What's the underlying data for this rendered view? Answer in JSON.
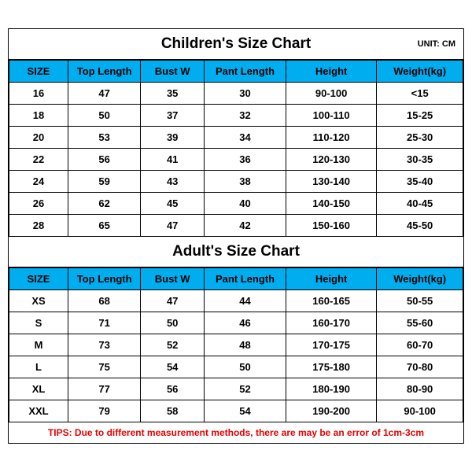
{
  "children": {
    "title": "Children's Size Chart",
    "unit": "UNIT: CM",
    "columns": [
      "SIZE",
      "Top Length",
      "Bust W",
      "Pant Length",
      "Height",
      "Weight(kg)"
    ],
    "rows": [
      [
        "16",
        "47",
        "35",
        "30",
        "90-100",
        "<15"
      ],
      [
        "18",
        "50",
        "37",
        "32",
        "100-110",
        "15-25"
      ],
      [
        "20",
        "53",
        "39",
        "34",
        "110-120",
        "25-30"
      ],
      [
        "22",
        "56",
        "41",
        "36",
        "120-130",
        "30-35"
      ],
      [
        "24",
        "59",
        "43",
        "38",
        "130-140",
        "35-40"
      ],
      [
        "26",
        "62",
        "45",
        "40",
        "140-150",
        "40-45"
      ],
      [
        "28",
        "65",
        "47",
        "42",
        "150-160",
        "45-50"
      ]
    ]
  },
  "adult": {
    "title": "Adult's Size Chart",
    "columns": [
      "SIZE",
      "Top Length",
      "Bust W",
      "Pant Length",
      "Height",
      "Weight(kg)"
    ],
    "rows": [
      [
        "XS",
        "68",
        "47",
        "44",
        "160-165",
        "50-55"
      ],
      [
        "S",
        "71",
        "50",
        "46",
        "160-170",
        "55-60"
      ],
      [
        "M",
        "73",
        "52",
        "48",
        "170-175",
        "60-70"
      ],
      [
        "L",
        "75",
        "54",
        "50",
        "175-180",
        "70-80"
      ],
      [
        "XL",
        "77",
        "56",
        "52",
        "180-190",
        "80-90"
      ],
      [
        "XXL",
        "79",
        "58",
        "54",
        "190-200",
        "90-100"
      ]
    ]
  },
  "tips": "TIPS: Due to different measurement methods, there are may be an error of 1cm-3cm",
  "colors": {
    "header_bg": "#00aef0",
    "border": "#000000",
    "tips_color": "#e60000",
    "background": "#ffffff"
  }
}
